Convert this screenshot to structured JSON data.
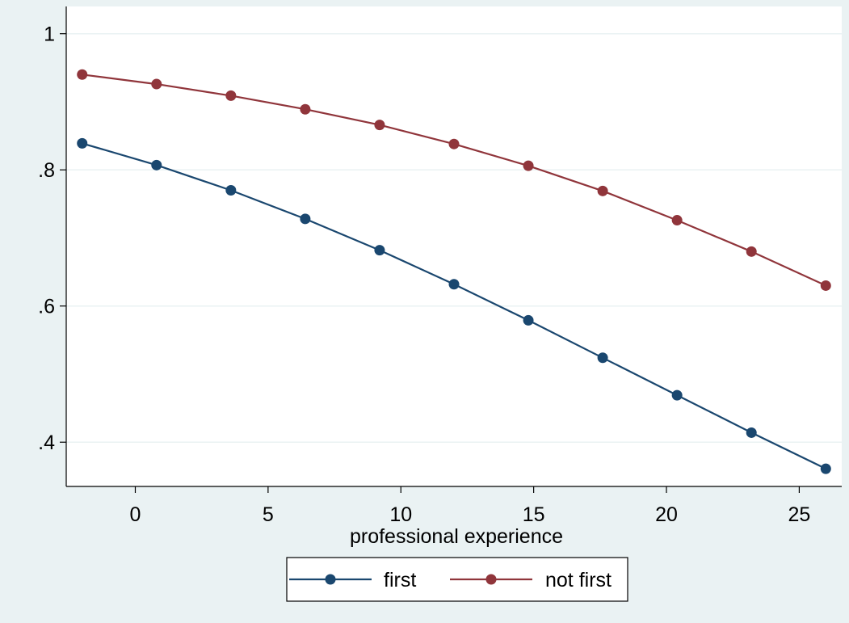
{
  "chart_data": {
    "type": "line",
    "title": "",
    "xlabel": "professional experience",
    "ylabel": "",
    "x": [
      -2,
      0.8,
      3.6,
      6.4,
      9.2,
      12.0,
      14.8,
      17.6,
      20.4,
      23.2,
      26.0
    ],
    "series": [
      {
        "name": "first",
        "color": "#1a476f",
        "values": [
          0.839,
          0.807,
          0.77,
          0.728,
          0.682,
          0.632,
          0.579,
          0.524,
          0.469,
          0.414,
          0.361
        ]
      },
      {
        "name": "not first",
        "color": "#90353b",
        "values": [
          0.94,
          0.926,
          0.909,
          0.889,
          0.866,
          0.838,
          0.806,
          0.769,
          0.726,
          0.68,
          0.63
        ]
      }
    ],
    "xlim": [
      -2.6,
      26.6
    ],
    "ylim": [
      0.335,
      1.04
    ],
    "xticks": [
      0,
      5,
      10,
      15,
      20,
      25
    ],
    "xtick_labels": [
      "0",
      "5",
      "10",
      "15",
      "20",
      "25"
    ],
    "yticks": [
      0.4,
      0.6,
      0.8,
      1.0
    ],
    "ytick_labels": [
      ".4",
      ".6",
      ".8",
      "1"
    ],
    "grid": "horizontal",
    "legend_position": "bottom",
    "background": "#eaf2f3",
    "plot_background": "#ffffff"
  }
}
